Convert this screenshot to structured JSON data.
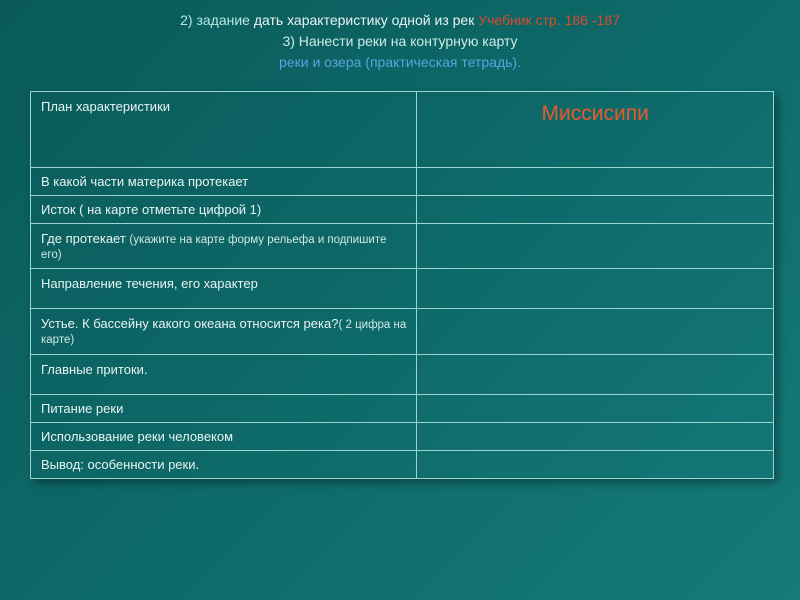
{
  "header": {
    "line1_num": "2) задание",
    "line1_txt": " дать характеристику одной из рек ",
    "line1_ref": "Учебник стр. 186 -187",
    "line2": "3) Нанести реки на контурную карту",
    "line3": "реки и озера (практическая тетрадь)."
  },
  "table": {
    "header_left": "План характеристики",
    "header_right": "Миссисипи",
    "rows": [
      {
        "label": "В какой части материка протекает",
        "note": "",
        "cls": "short",
        "value": ""
      },
      {
        "label": "Исток ( на карте отметьте цифрой 1)",
        "note": "",
        "cls": "short",
        "value": ""
      },
      {
        "label": "Где протекает ",
        "note": "(укажите на карте форму рельефа и подпишите его)",
        "cls": "med",
        "value": ""
      },
      {
        "label": "Направление течения, его характер",
        "note": "",
        "cls": "med",
        "value": ""
      },
      {
        "label": "Устье. К бассейну какого океана относится река?",
        "note": "( 2 цифра на карте)",
        "cls": "tall",
        "value": ""
      },
      {
        "label": "Главные притоки.",
        "note": "",
        "cls": "med",
        "value": ""
      },
      {
        "label": "Питание реки",
        "note": "",
        "cls": "short",
        "value": ""
      },
      {
        "label": "Использование реки человеком",
        "note": "",
        "cls": "short",
        "value": ""
      },
      {
        "label": "Вывод: особенности реки.",
        "note": "",
        "cls": "short",
        "value": ""
      }
    ],
    "colors": {
      "border": "#9ad6cf",
      "header_right_color": "#e85a2a",
      "text": "#e8f4f2",
      "bg_gradient_from": "#0a5a5a",
      "bg_gradient_to": "#157a7a"
    }
  }
}
